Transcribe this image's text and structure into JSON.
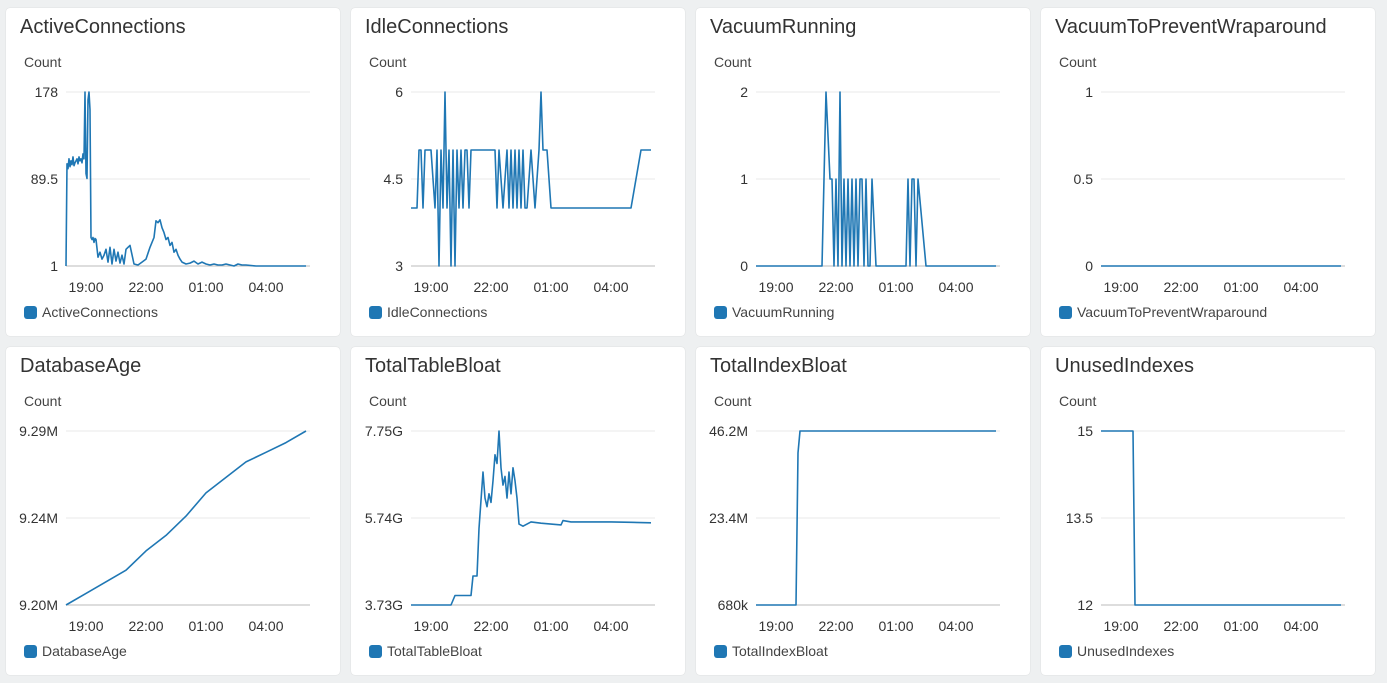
{
  "theme": {
    "series_color": "#1f77b4",
    "grid_color": "#e8e8e8",
    "axis_color": "#bbbbbb"
  },
  "chart_data": [
    {
      "type": "line",
      "title": "ActiveConnections",
      "ylabel": "Count",
      "y_ticks": [
        "178",
        "89.5",
        "1"
      ],
      "ylim": [
        1,
        178
      ],
      "x_ticks": [
        "19:00",
        "22:00",
        "01:00",
        "04:00"
      ],
      "x_tick_hours": [
        19,
        22,
        25,
        28
      ],
      "xlim_hours": [
        18,
        30
      ],
      "legend": [
        "ActiveConnections"
      ],
      "series": [
        {
          "name": "ActiveConnections",
          "x": [
            18.0,
            18.05,
            18.1,
            18.15,
            18.2,
            18.25,
            18.3,
            18.35,
            18.4,
            18.45,
            18.5,
            18.55,
            18.6,
            18.65,
            18.7,
            18.75,
            18.8,
            18.85,
            18.9,
            18.95,
            19.0,
            19.05,
            19.1,
            19.15,
            19.2,
            19.25,
            19.3,
            19.35,
            19.4,
            19.45,
            19.5,
            19.6,
            19.7,
            19.8,
            19.9,
            20.0,
            20.1,
            20.2,
            20.3,
            20.4,
            20.5,
            20.6,
            20.7,
            20.8,
            20.9,
            21.0,
            21.1,
            21.2,
            21.4,
            21.6,
            21.8,
            22.0,
            22.2,
            22.4,
            22.5,
            22.6,
            22.7,
            22.8,
            22.9,
            23.0,
            23.1,
            23.2,
            23.3,
            23.4,
            23.5,
            23.6,
            23.7,
            23.8,
            24.0,
            24.2,
            24.4,
            24.6,
            24.8,
            25.0,
            25.2,
            25.4,
            25.6,
            25.8,
            26.0,
            26.2,
            26.4,
            26.6,
            26.8,
            27.0,
            27.5,
            28,
            28.5,
            29,
            29.5,
            30
          ],
          "y": [
            1,
            105,
            100,
            110,
            102,
            108,
            104,
            112,
            103,
            106,
            108,
            110,
            105,
            112,
            108,
            110,
            106,
            115,
            110,
            178,
            95,
            90,
            170,
            178,
            160,
            30,
            28,
            30,
            25,
            29,
            28,
            10,
            15,
            8,
            12,
            18,
            5,
            20,
            3,
            18,
            6,
            15,
            4,
            12,
            3,
            18,
            20,
            22,
            3,
            2,
            5,
            8,
            20,
            30,
            47,
            45,
            48,
            40,
            35,
            28,
            30,
            22,
            25,
            15,
            18,
            12,
            8,
            5,
            3,
            4,
            6,
            3,
            5,
            3,
            2,
            3,
            2,
            2,
            3,
            2,
            1,
            3,
            2,
            2,
            1,
            1,
            1,
            1,
            1,
            1
          ]
        }
      ]
    },
    {
      "type": "line",
      "title": "IdleConnections",
      "ylabel": "Count",
      "y_ticks": [
        "6",
        "4.5",
        "3"
      ],
      "ylim": [
        3,
        6
      ],
      "x_ticks": [
        "19:00",
        "22:00",
        "01:00",
        "04:00"
      ],
      "x_tick_hours": [
        19,
        22,
        25,
        28
      ],
      "xlim_hours": [
        18,
        30
      ],
      "legend": [
        "IdleConnections"
      ],
      "series": [
        {
          "name": "IdleConnections",
          "x": [
            18.0,
            18.3,
            18.4,
            18.5,
            18.6,
            18.7,
            18.8,
            19.0,
            19.2,
            19.3,
            19.4,
            19.5,
            19.6,
            19.7,
            19.8,
            19.9,
            20.0,
            20.1,
            20.2,
            20.3,
            20.4,
            20.5,
            20.6,
            20.7,
            20.8,
            20.9,
            21.0,
            21.2,
            21.4,
            21.6,
            21.8,
            22.0,
            22.2,
            22.3,
            22.4,
            22.6,
            22.8,
            22.9,
            23.0,
            23.1,
            23.2,
            23.3,
            23.4,
            23.5,
            23.6,
            23.7,
            23.8,
            24.0,
            24.2,
            24.4,
            24.5,
            24.6,
            24.8,
            25.0,
            25.2,
            25.4,
            25.5,
            25.6,
            25.8,
            26.0,
            26.5,
            27,
            27.5,
            28,
            28.5,
            29,
            29.5,
            29.6,
            29.7,
            30
          ],
          "y": [
            4.0,
            4.0,
            5.0,
            5.0,
            4.0,
            5.0,
            5.0,
            5.0,
            4.0,
            5.0,
            3.0,
            5.0,
            4.0,
            6.0,
            4.0,
            5.0,
            3.0,
            5.0,
            3.0,
            5.0,
            4.0,
            5.0,
            4.0,
            5.0,
            5.0,
            4.0,
            5.0,
            5.0,
            5.0,
            5.0,
            5.0,
            5.0,
            5.0,
            4.0,
            5.0,
            4.0,
            5.0,
            4.0,
            5.0,
            4.0,
            5.0,
            4.0,
            5.0,
            4.0,
            5.0,
            4.0,
            4.0,
            5.0,
            4.0,
            5.0,
            6.0,
            5.0,
            5.0,
            4.0,
            4.0,
            4.0,
            4.0,
            4.0,
            4.0,
            4.0,
            4.0,
            4.0,
            4.0,
            4.0,
            4.0,
            4.0,
            5.0,
            5.0,
            5.0,
            5.0
          ]
        }
      ]
    },
    {
      "type": "line",
      "title": "VacuumRunning",
      "ylabel": "Count",
      "y_ticks": [
        "2",
        "1",
        "0"
      ],
      "ylim": [
        0,
        2
      ],
      "x_ticks": [
        "19:00",
        "22:00",
        "01:00",
        "04:00"
      ],
      "x_tick_hours": [
        19,
        22,
        25,
        28
      ],
      "xlim_hours": [
        18,
        30
      ],
      "legend": [
        "VacuumRunning"
      ],
      "series": [
        {
          "name": "VacuumRunning",
          "x": [
            18,
            19,
            20,
            21,
            21.3,
            21.5,
            21.7,
            21.8,
            21.9,
            22.0,
            22.1,
            22.2,
            22.3,
            22.4,
            22.5,
            22.6,
            22.7,
            22.8,
            22.9,
            23.0,
            23.1,
            23.2,
            23.3,
            23.4,
            23.5,
            23.6,
            23.7,
            23.8,
            24.0,
            24.5,
            25,
            25.5,
            25.6,
            25.7,
            25.8,
            25.9,
            26.0,
            26.1,
            26.5,
            27,
            28,
            29,
            30
          ],
          "y": [
            0,
            0,
            0,
            0,
            0,
            2,
            1,
            1,
            0,
            1,
            0,
            2,
            0,
            1,
            0,
            1,
            0,
            1,
            0,
            1,
            0,
            1,
            1,
            0,
            1,
            0,
            0,
            1,
            0,
            0,
            0,
            0,
            1,
            0,
            1,
            1,
            0,
            1,
            0,
            0,
            0,
            0,
            0
          ]
        }
      ]
    },
    {
      "type": "line",
      "title": "VacuumToPreventWraparound",
      "ylabel": "Count",
      "y_ticks": [
        "1",
        "0.5",
        "0"
      ],
      "ylim": [
        0,
        1
      ],
      "x_ticks": [
        "19:00",
        "22:00",
        "01:00",
        "04:00"
      ],
      "x_tick_hours": [
        19,
        22,
        25,
        28
      ],
      "xlim_hours": [
        18,
        30
      ],
      "legend": [
        "VacuumToPreventWraparound"
      ],
      "series": [
        {
          "name": "VacuumToPreventWraparound",
          "x": [
            18,
            30
          ],
          "y": [
            0,
            0
          ]
        }
      ]
    },
    {
      "type": "line",
      "title": "DatabaseAge",
      "ylabel": "Count",
      "y_ticks": [
        "9.29M",
        "9.24M",
        "9.20M"
      ],
      "ylim": [
        9.2,
        9.29
      ],
      "x_ticks": [
        "19:00",
        "22:00",
        "01:00",
        "04:00"
      ],
      "x_tick_hours": [
        19,
        22,
        25,
        28
      ],
      "xlim_hours": [
        18,
        30
      ],
      "legend": [
        "DatabaseAge"
      ],
      "series": [
        {
          "name": "DatabaseAge",
          "x": [
            18,
            19,
            20,
            21,
            22,
            23,
            24,
            25,
            26,
            27,
            28,
            29,
            30
          ],
          "y": [
            9.2,
            9.206,
            9.212,
            9.218,
            9.228,
            9.236,
            9.246,
            9.258,
            9.266,
            9.274,
            9.279,
            9.284,
            9.29
          ]
        }
      ]
    },
    {
      "type": "line",
      "title": "TotalTableBloat",
      "ylabel": "Count",
      "y_ticks": [
        "7.75G",
        "5.74G",
        "3.73G"
      ],
      "ylim": [
        3.73,
        7.75
      ],
      "x_ticks": [
        "19:00",
        "22:00",
        "01:00",
        "04:00"
      ],
      "x_tick_hours": [
        19,
        22,
        25,
        28
      ],
      "xlim_hours": [
        18,
        30
      ],
      "legend": [
        "TotalTableBloat"
      ],
      "series": [
        {
          "name": "TotalTableBloat",
          "x": [
            18,
            19,
            20,
            20.2,
            21,
            21.1,
            21.3,
            21.4,
            21.6,
            21.7,
            21.8,
            21.9,
            22.0,
            22.1,
            22.2,
            22.3,
            22.4,
            22.5,
            22.6,
            22.7,
            22.8,
            22.9,
            23.0,
            23.1,
            23.2,
            23.3,
            23.4,
            23.6,
            24.0,
            24.5,
            25,
            25.5,
            25.6,
            26,
            27,
            28,
            29,
            30
          ],
          "y": [
            3.73,
            3.73,
            3.73,
            3.95,
            3.95,
            4.4,
            4.4,
            5.5,
            6.8,
            6.2,
            6.0,
            6.3,
            6.1,
            6.6,
            7.2,
            7.0,
            7.75,
            6.9,
            6.5,
            6.7,
            6.2,
            6.8,
            6.3,
            6.9,
            6.6,
            6.2,
            5.6,
            5.55,
            5.65,
            5.62,
            5.6,
            5.58,
            5.68,
            5.65,
            5.65,
            5.65,
            5.64,
            5.63
          ]
        }
      ]
    },
    {
      "type": "line",
      "title": "TotalIndexBloat",
      "ylabel": "Count",
      "y_ticks": [
        "46.2M",
        "23.4M",
        "680k"
      ],
      "ylim": [
        0.68,
        46.2
      ],
      "x_ticks": [
        "19:00",
        "22:00",
        "01:00",
        "04:00"
      ],
      "x_tick_hours": [
        19,
        22,
        25,
        28
      ],
      "xlim_hours": [
        18,
        30
      ],
      "legend": [
        "TotalIndexBloat"
      ],
      "series": [
        {
          "name": "TotalIndexBloat",
          "x": [
            18,
            19,
            20,
            20.1,
            20.2,
            21,
            22,
            24,
            26,
            28,
            30
          ],
          "y": [
            0.68,
            0.68,
            0.68,
            40.5,
            46.2,
            46.2,
            46.2,
            46.2,
            46.2,
            46.2,
            46.2
          ]
        }
      ]
    },
    {
      "type": "line",
      "title": "UnusedIndexes",
      "ylabel": "Count",
      "y_ticks": [
        "15",
        "13.5",
        "12"
      ],
      "ylim": [
        12,
        15
      ],
      "x_ticks": [
        "19:00",
        "22:00",
        "01:00",
        "04:00"
      ],
      "x_tick_hours": [
        19,
        22,
        25,
        28
      ],
      "xlim_hours": [
        18,
        30
      ],
      "legend": [
        "UnusedIndexes"
      ],
      "series": [
        {
          "name": "UnusedIndexes",
          "x": [
            18,
            19.0,
            19.6,
            19.7,
            22,
            25,
            28,
            30
          ],
          "y": [
            15,
            15,
            15,
            12,
            12,
            12,
            12,
            12
          ]
        }
      ]
    }
  ]
}
